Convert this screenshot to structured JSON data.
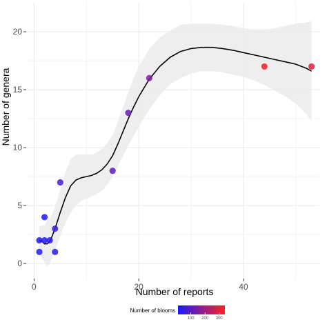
{
  "chart_data": {
    "type": "scatter",
    "xlabel": "Number of reports",
    "ylabel": "Number of genera",
    "xlim": [
      -1.5,
      54.5
    ],
    "ylim": [
      -1.3,
      22.5
    ],
    "x_ticks": [
      0,
      20,
      40
    ],
    "y_ticks": [
      0,
      5,
      10,
      15,
      20
    ],
    "grid": true,
    "points": [
      {
        "x": 1,
        "y": 1,
        "blooms": 10
      },
      {
        "x": 1,
        "y": 2,
        "blooms": 12
      },
      {
        "x": 2,
        "y": 2,
        "blooms": 20
      },
      {
        "x": 2,
        "y": 4,
        "blooms": 18
      },
      {
        "x": 3,
        "y": 2,
        "blooms": 30
      },
      {
        "x": 4,
        "y": 1,
        "blooms": 25
      },
      {
        "x": 4,
        "y": 3,
        "blooms": 60
      },
      {
        "x": 5,
        "y": 7,
        "blooms": 70
      },
      {
        "x": 15,
        "y": 8,
        "blooms": 110
      },
      {
        "x": 18,
        "y": 13,
        "blooms": 120
      },
      {
        "x": 22,
        "y": 16,
        "blooms": 150
      },
      {
        "x": 44,
        "y": 17,
        "blooms": 330
      },
      {
        "x": 53,
        "y": 17,
        "blooms": 300
      }
    ],
    "smooth_line": {
      "x": [
        1,
        1.5,
        2,
        2.5,
        3,
        3.5,
        4,
        4.5,
        5,
        6,
        7,
        8,
        9,
        10,
        11,
        12,
        13,
        14,
        15,
        16,
        17,
        18,
        19,
        20,
        22,
        24,
        26,
        28,
        30,
        32,
        34,
        36,
        38,
        40,
        42,
        44,
        46,
        48,
        50,
        52,
        53
      ],
      "y": [
        2.0,
        1.9,
        1.7,
        1.7,
        1.9,
        2.4,
        3.0,
        3.7,
        4.4,
        5.7,
        6.7,
        7.2,
        7.4,
        7.5,
        7.6,
        7.8,
        8.1,
        8.6,
        9.3,
        10.3,
        11.4,
        12.5,
        13.5,
        14.4,
        15.9,
        17.0,
        17.8,
        18.3,
        18.55,
        18.65,
        18.65,
        18.55,
        18.4,
        18.2,
        18.0,
        17.8,
        17.6,
        17.4,
        17.2,
        16.85,
        16.6
      ]
    },
    "confidence_band": {
      "x": [
        1,
        1.5,
        2,
        2.5,
        3,
        3.5,
        4,
        4.5,
        5,
        6,
        7,
        8,
        9,
        10,
        11,
        12,
        13,
        14,
        15,
        16,
        17,
        18,
        19,
        20,
        22,
        24,
        26,
        28,
        30,
        32,
        34,
        36,
        38,
        40,
        42,
        44,
        46,
        48,
        50,
        52,
        53
      ],
      "lower": [
        0.8,
        0.5,
        0.1,
        -0.3,
        0.0,
        0.5,
        1.1,
        1.8,
        2.4,
        3.5,
        4.4,
        5.0,
        5.4,
        5.6,
        5.8,
        6.0,
        6.3,
        6.8,
        7.5,
        8.4,
        9.3,
        10.2,
        11.0,
        11.8,
        13.3,
        14.5,
        15.5,
        16.0,
        16.4,
        16.6,
        16.6,
        16.5,
        16.3,
        16.1,
        15.8,
        15.4,
        14.9,
        14.4,
        13.8,
        12.9,
        12.3
      ],
      "upper": [
        3.2,
        3.3,
        3.3,
        3.7,
        3.8,
        4.3,
        4.9,
        5.6,
        6.4,
        7.9,
        9.0,
        9.4,
        9.4,
        9.4,
        9.4,
        9.6,
        9.9,
        10.4,
        11.1,
        12.2,
        13.5,
        14.8,
        16.0,
        17.0,
        18.5,
        19.5,
        20.1,
        20.6,
        20.7,
        20.7,
        20.7,
        20.6,
        20.5,
        20.3,
        20.2,
        20.2,
        20.3,
        20.5,
        20.7,
        20.8,
        20.9
      ]
    },
    "color_legend": {
      "title": "Number of blooms",
      "min": 10,
      "max": 340,
      "ticks": [
        100,
        200,
        300
      ],
      "low_color": "#1a1aff",
      "high_color": "#ff2020",
      "placement": "bottom"
    },
    "band_color": "#ebebeb",
    "line_color": "#000000",
    "grid_color": "#ebebeb"
  }
}
